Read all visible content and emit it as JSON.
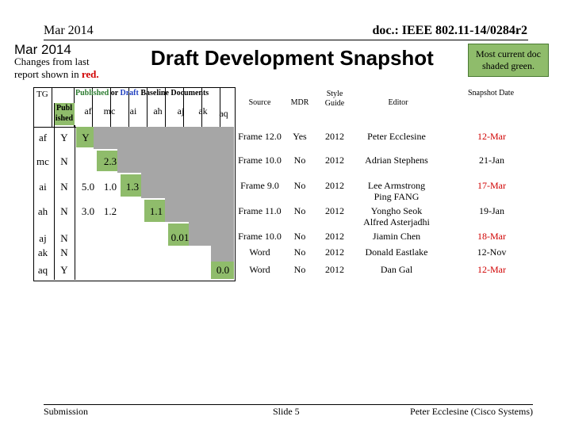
{
  "header": {
    "date": "Mar 2014",
    "doc_id": "doc.: IEEE 802.11-14/0284r2"
  },
  "slide": {
    "date_label": "Mar 2014",
    "changes_line1": "Changes from last",
    "changes_line2_prefix": "report shown in ",
    "changes_line2_red": "red.",
    "title": "Draft Development Snapshot",
    "note": "Most current doc shaded green."
  },
  "matrix": {
    "tg_label": "TG",
    "caption_published": "Published",
    "caption_or": " or ",
    "caption_draft": "Draft",
    "caption_rest": " Baseline Documents",
    "published_header": "Publ ished",
    "columns": [
      "af",
      "mc",
      "ai",
      "ah",
      "aj",
      "ak",
      "aq"
    ],
    "rows": [
      {
        "tg": "af",
        "published": "Y",
        "cells": {
          "af": "Y"
        }
      },
      {
        "tg": "mc",
        "published": "N",
        "cells": {
          "mc": "2.3"
        }
      },
      {
        "tg": "ai",
        "published": "N",
        "cells": {
          "af": "5.0",
          "mc": "1.0",
          "ai": "1.3"
        }
      },
      {
        "tg": "ah",
        "published": "N",
        "cells": {
          "af": "3.0",
          "mc": "1.2",
          "ah": "1.1"
        }
      },
      {
        "tg": "aj",
        "published": "N",
        "cells": {
          "aj": "0.01"
        }
      },
      {
        "tg": "ak",
        "published": "N",
        "cells": {}
      },
      {
        "tg": "aq",
        "published": "Y",
        "cells": {
          "aq": "0.0"
        }
      }
    ]
  },
  "table": {
    "headers": {
      "source": "Source",
      "mdr": "MDR",
      "style": "Style Guide",
      "editor": "Editor",
      "snapshot": "Snapshot Date"
    },
    "rows": [
      {
        "source": "Frame 12.0",
        "mdr": "Yes",
        "style": "2012",
        "editor": "Peter Ecclesine",
        "editor2": "",
        "date": "12-Mar",
        "red": true
      },
      {
        "source": "Frame 10.0",
        "mdr": "No",
        "style": "2012",
        "editor": "Adrian Stephens",
        "editor2": "",
        "date": "21-Jan",
        "red": false
      },
      {
        "source": "Frame 9.0",
        "mdr": "No",
        "style": "2012",
        "editor": "Lee Armstrong",
        "editor2": "Ping FANG",
        "date": "17-Mar",
        "red": true
      },
      {
        "source": "Frame 11.0",
        "mdr": "No",
        "style": "2012",
        "editor": "Yongho Seok",
        "editor2": "Alfred Asterjadhi",
        "date": "19-Jan",
        "red": false
      },
      {
        "source": "Frame 10.0",
        "mdr": "No",
        "style": "2012",
        "editor": "Jiamin Chen",
        "editor2": "",
        "date": "18-Mar",
        "red": true
      },
      {
        "source": "Word",
        "mdr": "No",
        "style": "2012",
        "editor": "Donald Eastlake",
        "editor2": "",
        "date": "12-Nov",
        "red": false
      },
      {
        "source": "Word",
        "mdr": "No",
        "style": "2012",
        "editor": "Dan Gal",
        "editor2": "",
        "date": "12-Mar",
        "red": true
      }
    ]
  },
  "footer": {
    "left": "Submission",
    "center": "Slide 5",
    "right": "Peter Ecclesine (Cisco Systems)"
  },
  "colors": {
    "green": "#8fbc6b",
    "grey": "#a6a6a6",
    "red": "#d00000"
  }
}
